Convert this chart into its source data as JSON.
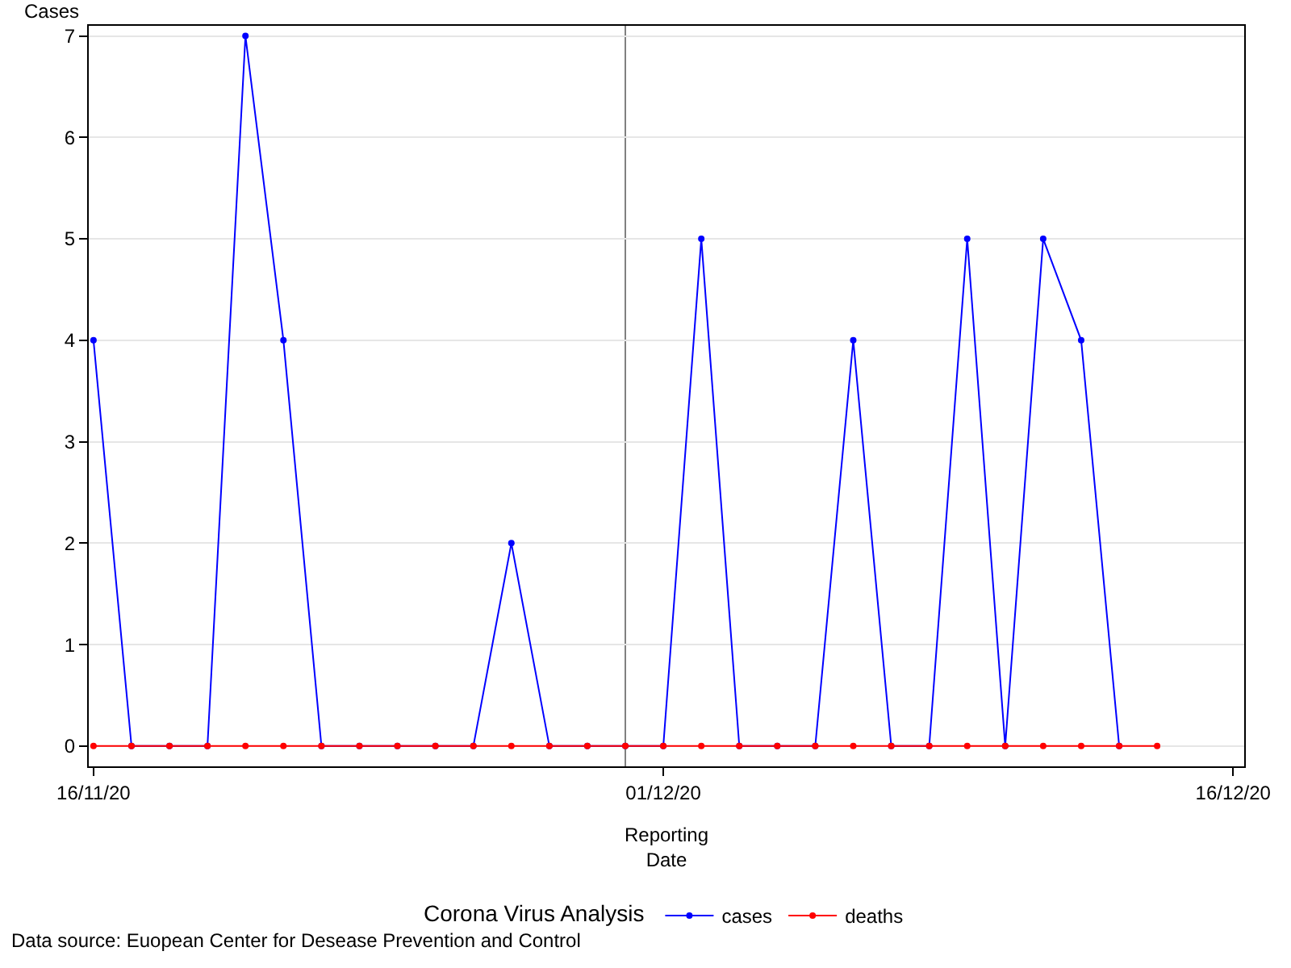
{
  "chart_data": {
    "type": "line",
    "x": [
      "2020-11-16",
      "2020-11-17",
      "2020-11-18",
      "2020-11-19",
      "2020-11-20",
      "2020-11-21",
      "2020-11-22",
      "2020-11-23",
      "2020-11-24",
      "2020-11-25",
      "2020-11-26",
      "2020-11-27",
      "2020-11-28",
      "2020-11-29",
      "2020-11-30",
      "2020-12-01",
      "2020-12-02",
      "2020-12-03",
      "2020-12-04",
      "2020-12-05",
      "2020-12-06",
      "2020-12-07",
      "2020-12-08",
      "2020-12-09",
      "2020-12-10",
      "2020-12-11",
      "2020-12-12",
      "2020-12-13",
      "2020-12-14"
    ],
    "series": [
      {
        "name": "cases",
        "color": "#0000ff",
        "values": [
          4,
          0,
          0,
          0,
          7,
          4,
          0,
          0,
          0,
          0,
          0,
          2,
          0,
          0,
          0,
          0,
          5,
          0,
          0,
          0,
          4,
          0,
          0,
          5,
          0,
          5,
          4,
          0,
          null
        ]
      },
      {
        "name": "deaths",
        "color": "#ff0000",
        "values": [
          0,
          0,
          0,
          0,
          0,
          0,
          0,
          0,
          0,
          0,
          0,
          0,
          0,
          0,
          0,
          0,
          0,
          0,
          0,
          0,
          0,
          0,
          0,
          0,
          0,
          0,
          0,
          0,
          0
        ]
      }
    ],
    "ylabel": "Cases",
    "xlabel": "Reporting\nDate",
    "legend_title": "Corona Virus Analysis",
    "xlim": [
      "2020-11-15T21:00",
      "2020-12-16T07:00"
    ],
    "xticks": [
      {
        "value": "2020-11-16",
        "label": "16/11/20"
      },
      {
        "value": "2020-12-01",
        "label": "01/12/20"
      },
      {
        "value": "2020-12-16",
        "label": "16/12/20"
      }
    ],
    "ylim": [
      -0.2,
      7.1
    ],
    "yticks": [
      0,
      1,
      2,
      3,
      4,
      5,
      6,
      7
    ],
    "ref_lines": [
      {
        "axis": "x",
        "value": "2020-11-30",
        "label": null,
        "color": "#808080"
      }
    ],
    "grid": "y",
    "legend": "bottom",
    "marker": "circle",
    "line_style": "solid",
    "annotations": [
      "Data source: Euopean Center for Desease Prevention and Control"
    ]
  }
}
